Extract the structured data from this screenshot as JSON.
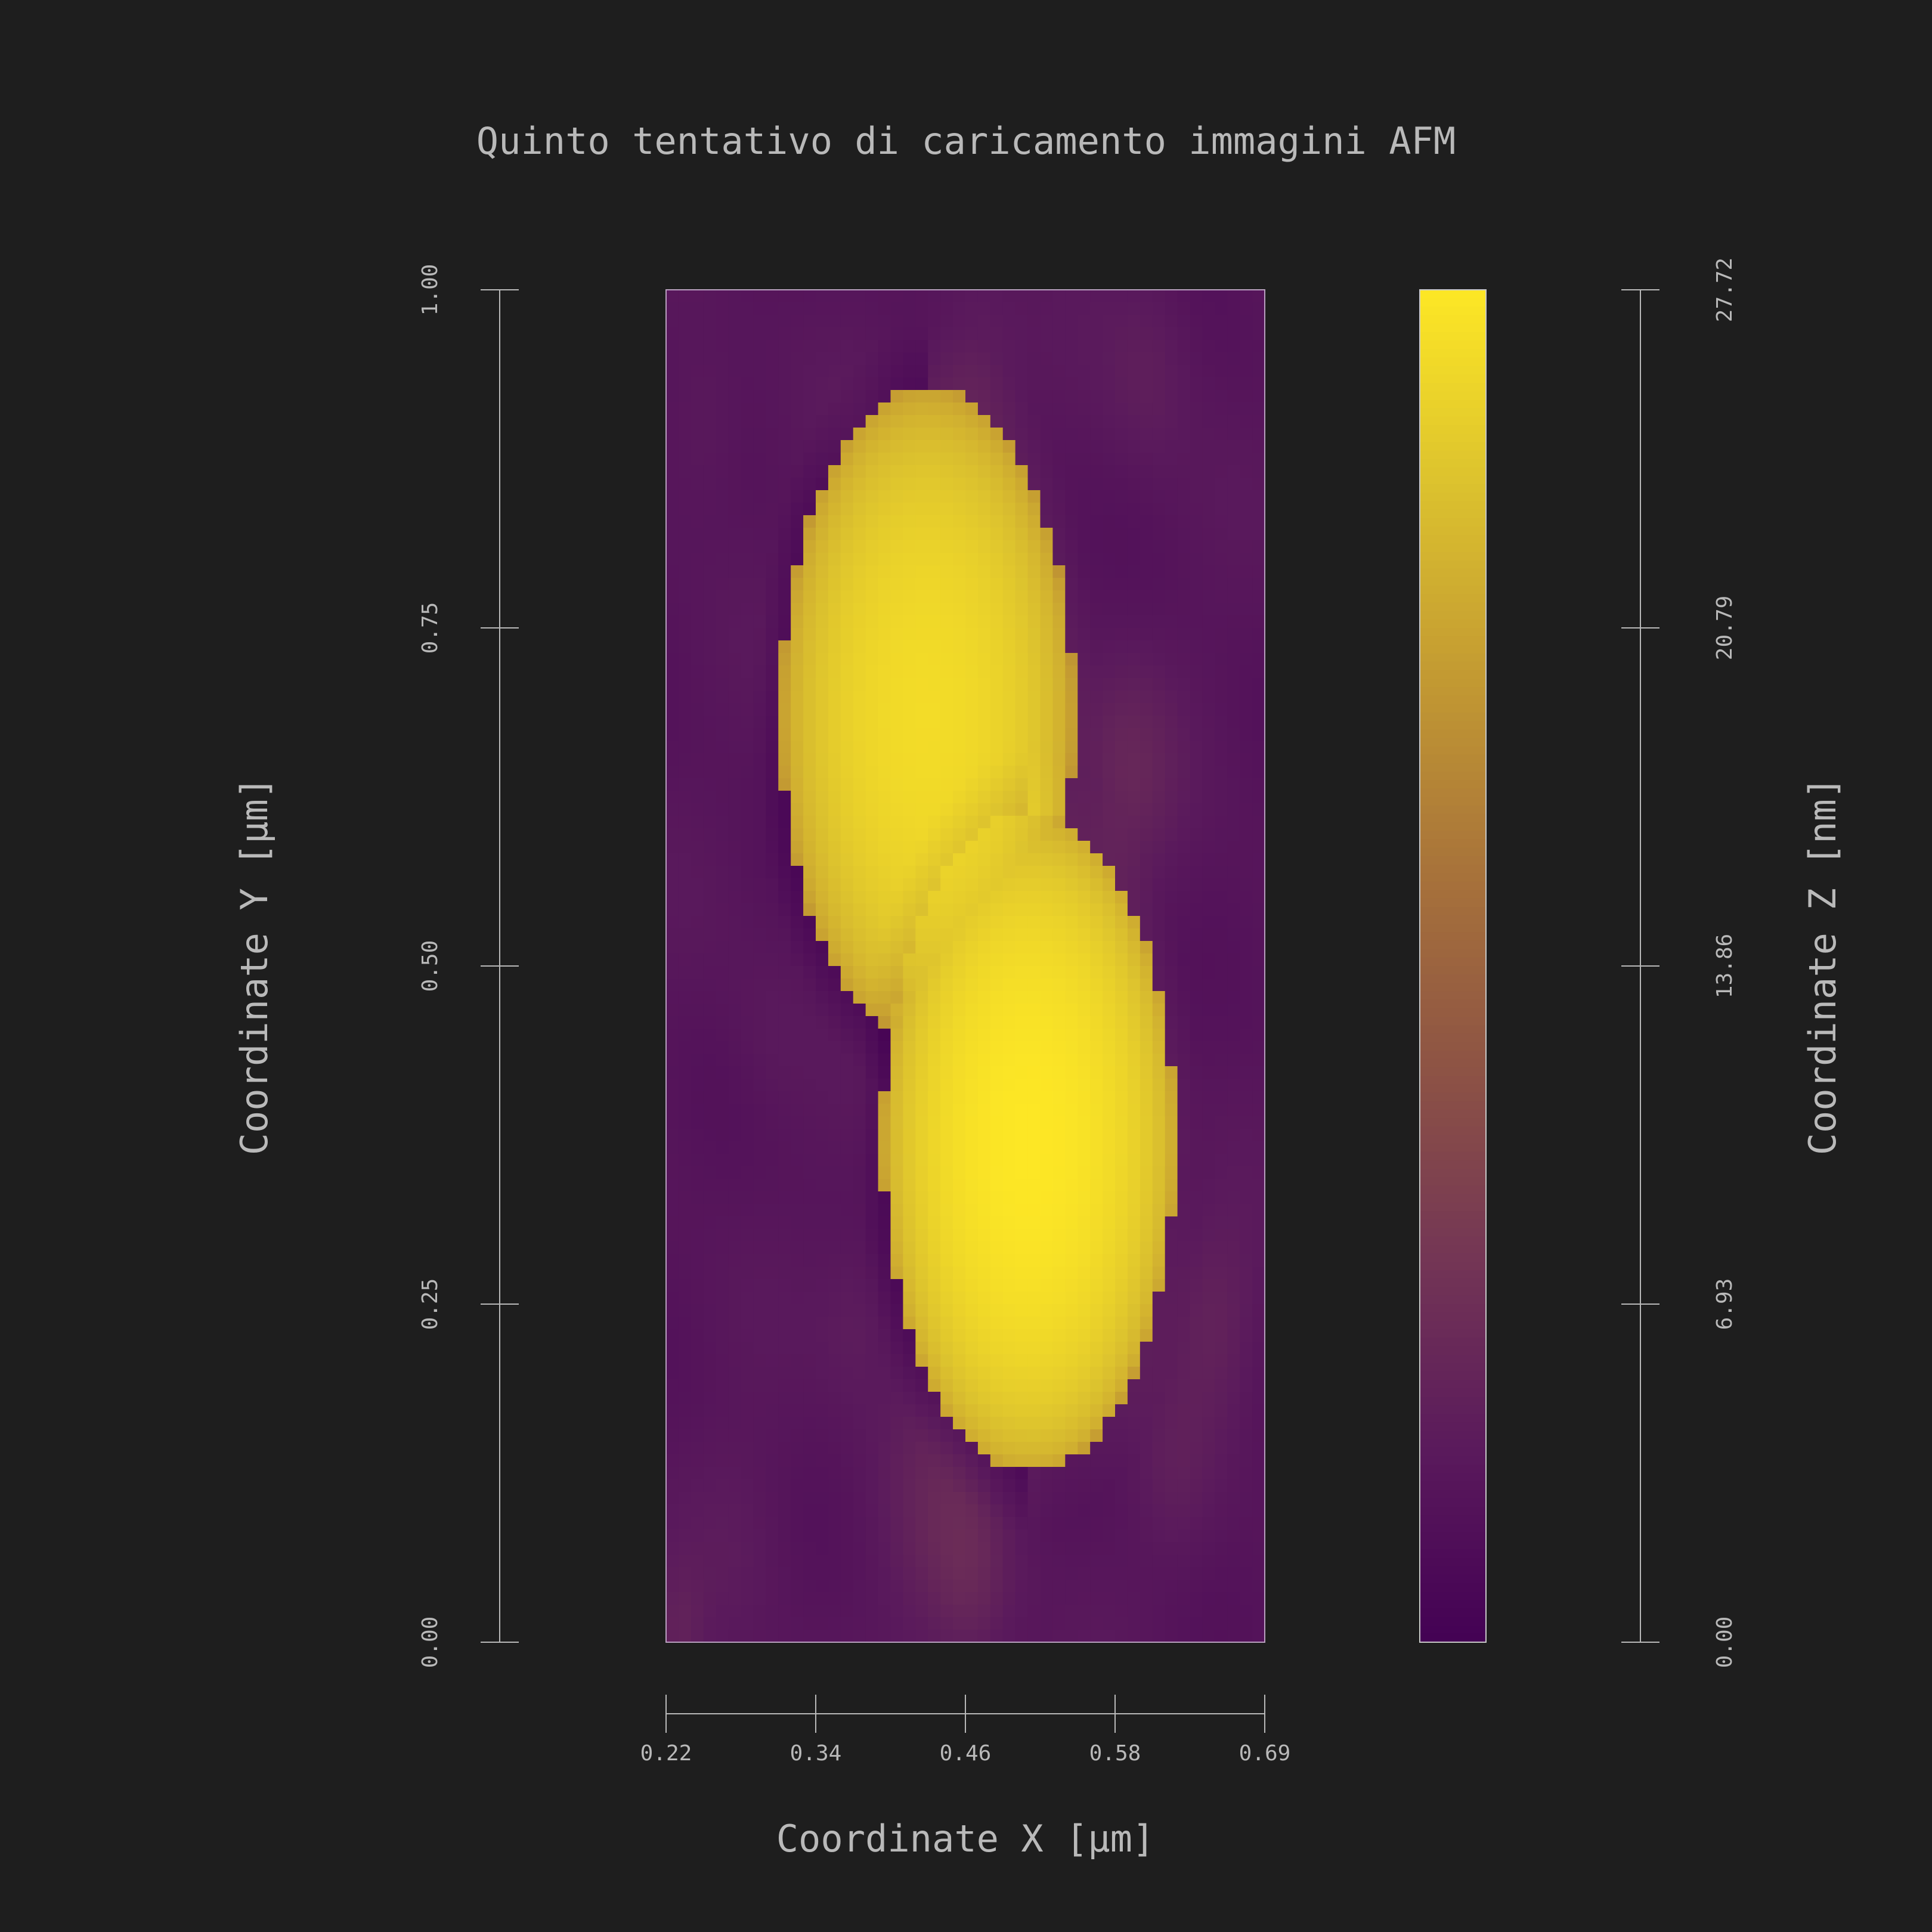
{
  "chart_data": {
    "type": "heatmap",
    "title": "Quinto tentativo di caricamento immagini AFM",
    "xlabel": "Coordinate X [µm]",
    "ylabel": "Coordinate Y [µm]",
    "zlabel": "Coordinate Z [nm]",
    "xlim": [
      0.22,
      0.69
    ],
    "ylim": [
      0.0,
      1.0
    ],
    "zlim": [
      0.0,
      27.72
    ],
    "x_ticks": [
      "0.22",
      "0.34",
      "0.46",
      "0.58",
      "0.69"
    ],
    "y_ticks": [
      "0.00",
      "0.25",
      "0.50",
      "0.75",
      "1.00"
    ],
    "z_ticks": [
      "0.00",
      "6.93",
      "13.86",
      "20.79",
      "27.72"
    ],
    "colormap": [
      "#440154",
      "#5a1a5c",
      "#743655",
      "#8e5444",
      "#a8733a",
      "#c39a32",
      "#dcc22e",
      "#fde725"
    ],
    "grid": false,
    "background": "#1e1e1e",
    "features": [
      {
        "kind": "particle",
        "x": 0.425,
        "y": 0.685,
        "radius": 0.115,
        "height": 26.5
      },
      {
        "kind": "particle",
        "x": 0.505,
        "y": 0.37,
        "radius": 0.115,
        "height": 27.72
      }
    ]
  }
}
